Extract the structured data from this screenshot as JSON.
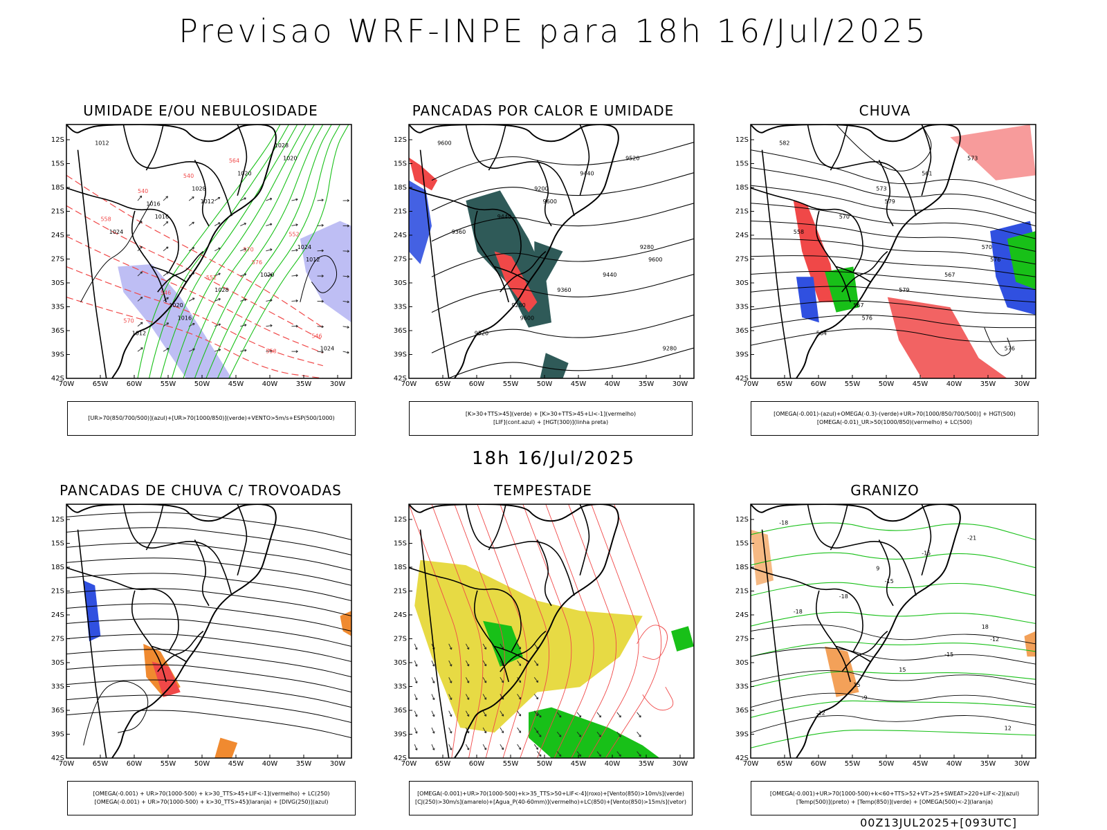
{
  "main_title": "Previsao WRF-INPE  para 18h 16/Jul/2025",
  "mid_title": "18h  16/Jul/2025",
  "footer": "00Z13JUL2025+[093UTC]",
  "lat_ticks": [
    "12S",
    "15S",
    "18S",
    "21S",
    "24S",
    "27S",
    "30S",
    "33S",
    "36S",
    "39S",
    "42S"
  ],
  "lon_ticks": [
    "70W",
    "65W",
    "60W",
    "55W",
    "50W",
    "45W",
    "40W",
    "35W",
    "30W"
  ],
  "colors": {
    "blue": "#3050e0",
    "green": "#18c018",
    "red": "#f04848",
    "orange": "#f08a30",
    "yellow": "#e6d83a",
    "lightblue": "#a8a8f0",
    "teal": "#2f5a58",
    "black": "#000000"
  },
  "panels": [
    {
      "id": "umidade",
      "title": "UMIDADE E/OU NEBULOSIDADE",
      "legend": [
        "[UR>70(850/700/500)](azul)+[UR>70(1000/850)](verde)+VENTO>5m/s+ESP(500/1000)"
      ],
      "labels": [
        "1012",
        "1012",
        "1012",
        "1016",
        "1020",
        "1016",
        "1020",
        "1012",
        "1020",
        "1024",
        "1028",
        "1024",
        "1028",
        "1024",
        "1020",
        "1028",
        "1016",
        "576",
        "570",
        "564",
        "558",
        "552",
        "546",
        "540",
        "552",
        "546",
        "558",
        "540",
        "570"
      ]
    },
    {
      "id": "calor",
      "title": "PANCADAS POR CALOR E UMIDADE",
      "legend": [
        "[K>30+TTS>45](verde)  +  [K>30+TTS>45+LI<-1](vermelho)",
        "[LIF](cont.azul)  +  [HGT(300)](linha preta)"
      ],
      "labels": [
        "9600",
        "9600",
        "9600",
        "9600",
        "9520",
        "9440",
        "9440",
        "9520",
        "9440",
        "9360",
        "9360",
        "9280",
        "9200",
        "9280",
        "9280"
      ]
    },
    {
      "id": "chuva",
      "title": "CHUVA",
      "legend": [
        "[OMEGA(-0.001)-(azul)+OMEGA(-0.3)-(verde)+UR>70(1000/850/700/500)]  +  HGT(500)",
        "[OMEGA(-0.01)_UR>50(1000/850)(vermelho)  +  LC(500)"
      ],
      "labels": [
        "582",
        "579",
        "576",
        "576",
        "573",
        "570",
        "567",
        "564",
        "561",
        "558",
        "579",
        "576",
        "573",
        "570",
        "567"
      ]
    },
    {
      "id": "trovoadas",
      "title": "PANCADAS DE CHUVA C/ TROVOADAS",
      "legend": [
        "[OMEGA(-0.001)  +  UR>70(1000-500)  +  k>30_TTS>45+LIF<-1](vermelho)  +  LC(250)",
        "[OMEGA(-0.001)  +  UR>70(1000-500)  +  k>30_TTS>45](laranja)  +  [DIVG(250)](azul)"
      ],
      "labels": []
    },
    {
      "id": "tempestade",
      "title": "TEMPESTADE",
      "legend": [
        "[OMEGA(-0.001)+UR>70(1000-500)+k>35_TTS>50+LIF<-4](roxo)+[Vento(850)>10m/s](verde)",
        "[CJ(250)>30m/s](amarelo)+[Agua_P(40-60mm)](vermelho)+LC(850)+[Vento(850)>15m/s](vetor)"
      ],
      "labels": []
    },
    {
      "id": "granizo",
      "title": "GRANIZO",
      "legend": [
        "[OMEGA(-0.001)+UR>70(1000-500)+k<60+TTS>52+VT>25+SWEAT>220+LIF<-2](azul)",
        "[Temp(500)](preto)  +  [Temp(850)](verde)  +  [OMEGA(500)<-2](laranja)"
      ],
      "labels": [
        "-18",
        "-15",
        "-12",
        "-9",
        "-21",
        "-18",
        "-15",
        "-12",
        "-15",
        "-18",
        "15",
        "12",
        "9",
        "18",
        "15"
      ]
    }
  ]
}
